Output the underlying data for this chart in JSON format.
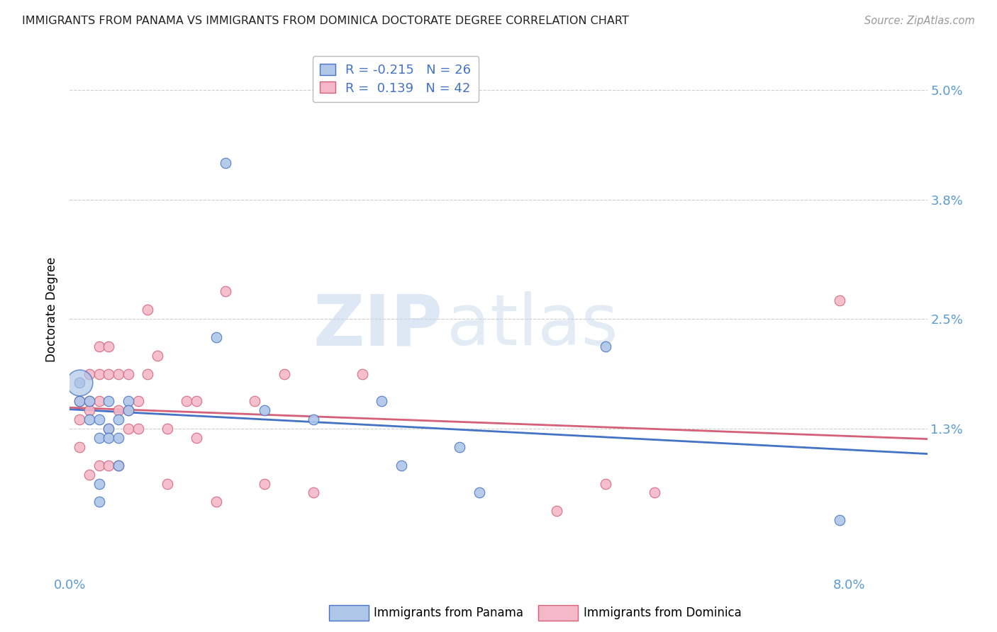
{
  "title": "IMMIGRANTS FROM PANAMA VS IMMIGRANTS FROM DOMINICA DOCTORATE DEGREE CORRELATION CHART",
  "source": "Source: ZipAtlas.com",
  "ylabel": "Doctorate Degree",
  "ytick_positions": [
    0.0,
    0.013,
    0.025,
    0.038,
    0.05
  ],
  "ytick_labels": [
    "",
    "1.3%",
    "2.5%",
    "3.8%",
    "5.0%"
  ],
  "xtick_positions": [
    0.0,
    0.02,
    0.04,
    0.06,
    0.08
  ],
  "xtick_labels": [
    "0.0%",
    "",
    "",
    "",
    "8.0%"
  ],
  "xlim": [
    0.0,
    0.088
  ],
  "ylim": [
    -0.003,
    0.055
  ],
  "panama_R": -0.215,
  "panama_N": 26,
  "dominica_R": 0.139,
  "dominica_N": 42,
  "panama_color": "#aec6e8",
  "panama_color_line": "#4472c4",
  "dominica_color": "#f4b8c8",
  "dominica_color_line": "#d4607a",
  "panama_x": [
    0.001,
    0.001,
    0.002,
    0.002,
    0.003,
    0.003,
    0.003,
    0.003,
    0.004,
    0.004,
    0.004,
    0.005,
    0.005,
    0.005,
    0.006,
    0.006,
    0.015,
    0.016,
    0.02,
    0.025,
    0.032,
    0.034,
    0.04,
    0.042,
    0.055,
    0.079
  ],
  "panama_y": [
    0.018,
    0.016,
    0.016,
    0.014,
    0.014,
    0.012,
    0.007,
    0.005,
    0.016,
    0.013,
    0.012,
    0.014,
    0.012,
    0.009,
    0.016,
    0.015,
    0.023,
    0.042,
    0.015,
    0.014,
    0.016,
    0.009,
    0.011,
    0.006,
    0.022,
    0.003
  ],
  "dominica_x": [
    0.001,
    0.001,
    0.001,
    0.002,
    0.002,
    0.002,
    0.002,
    0.003,
    0.003,
    0.003,
    0.003,
    0.004,
    0.004,
    0.004,
    0.004,
    0.005,
    0.005,
    0.005,
    0.006,
    0.006,
    0.006,
    0.007,
    0.007,
    0.008,
    0.008,
    0.009,
    0.01,
    0.01,
    0.012,
    0.013,
    0.013,
    0.015,
    0.016,
    0.019,
    0.02,
    0.022,
    0.025,
    0.03,
    0.05,
    0.055,
    0.06,
    0.079
  ],
  "dominica_y": [
    0.016,
    0.014,
    0.011,
    0.019,
    0.016,
    0.015,
    0.008,
    0.022,
    0.019,
    0.016,
    0.009,
    0.022,
    0.019,
    0.013,
    0.009,
    0.019,
    0.015,
    0.009,
    0.019,
    0.015,
    0.013,
    0.016,
    0.013,
    0.026,
    0.019,
    0.021,
    0.013,
    0.007,
    0.016,
    0.016,
    0.012,
    0.005,
    0.028,
    0.016,
    0.007,
    0.019,
    0.006,
    0.019,
    0.004,
    0.007,
    0.006,
    0.027
  ],
  "panama_large_size": 700,
  "dot_size": 110,
  "grid_color": "#cccccc",
  "legend_R_panama": "R = -0.215",
  "legend_N_panama": "N = 26",
  "legend_R_dominica": "R =  0.139",
  "legend_N_dominica": "N = 42"
}
